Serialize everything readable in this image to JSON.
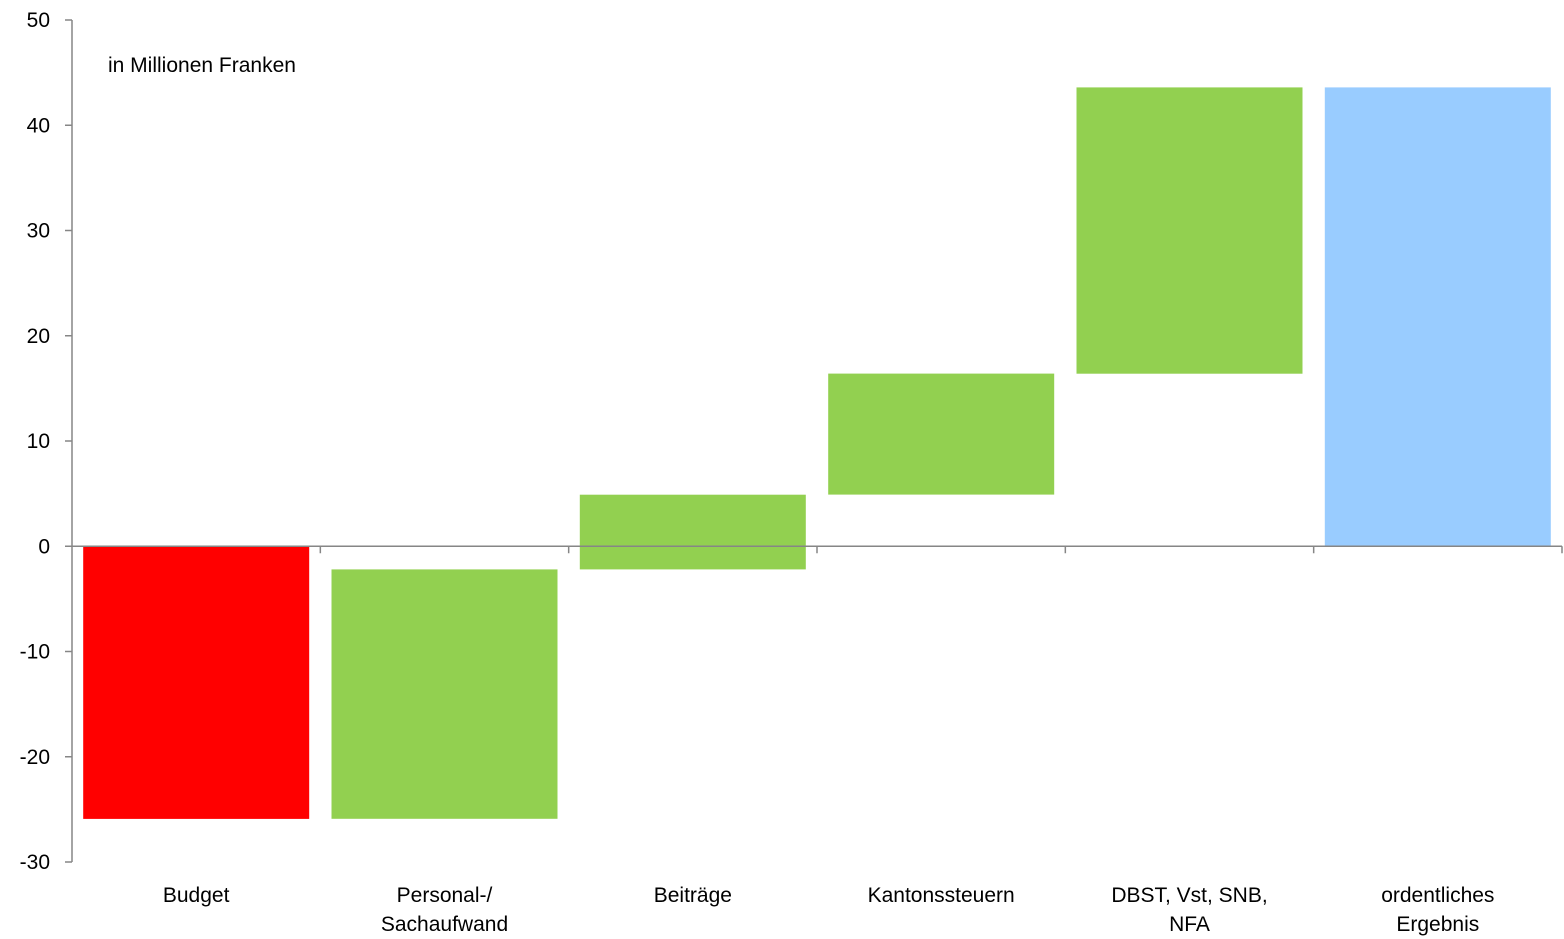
{
  "chart_data": {
    "type": "bar",
    "subtype": "waterfall",
    "annotation": "in Millionen Franken",
    "categories": [
      [
        "Budget"
      ],
      [
        "Personal-/",
        "Sachaufwand"
      ],
      [
        "Beiträge"
      ],
      [
        "Kantonssteuern"
      ],
      [
        "DBST, Vst, SNB,",
        "NFA"
      ],
      [
        "ordentliches",
        "Ergebnis"
      ]
    ],
    "bars": [
      {
        "bottom": -25.9,
        "top": 0,
        "color": "#ff0000"
      },
      {
        "bottom": -25.9,
        "top": -2.2,
        "color": "#92d050"
      },
      {
        "bottom": -2.2,
        "top": 4.9,
        "color": "#92d050"
      },
      {
        "bottom": 4.9,
        "top": 16.4,
        "color": "#92d050"
      },
      {
        "bottom": 16.4,
        "top": 43.6,
        "color": "#92d050"
      },
      {
        "bottom": 0,
        "top": 43.6,
        "color": "#99ccff"
      }
    ],
    "ylim": [
      -30,
      50
    ],
    "yticks": [
      "50",
      "40",
      "30",
      "20",
      "10",
      "0",
      "-10",
      "-20",
      "-30"
    ],
    "ytick_values": [
      50,
      40,
      30,
      20,
      10,
      0,
      -10,
      -20,
      -30
    ],
    "grid": false,
    "axis_color": "#868686"
  }
}
